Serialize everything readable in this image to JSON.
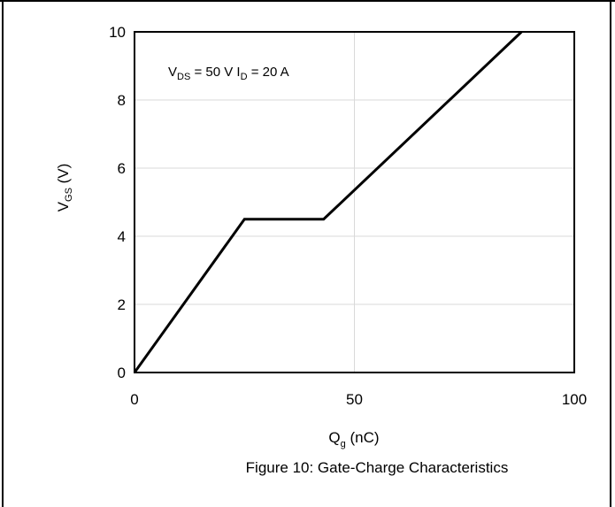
{
  "chart_data": {
    "type": "line",
    "x": [
      0,
      25,
      43,
      88
    ],
    "series": [
      {
        "values": [
          0,
          4.5,
          4.5,
          10
        ]
      }
    ],
    "xlim": [
      0,
      100
    ],
    "ylim": [
      0,
      10
    ],
    "xticks": [
      "0",
      "50",
      "100"
    ],
    "yticks": [
      "0",
      "2",
      "4",
      "6",
      "8",
      "10"
    ],
    "xticks_values": [
      0,
      50,
      100
    ],
    "yticks_values": [
      0,
      2,
      4,
      6,
      8,
      10
    ],
    "grid": true,
    "line_color": "#000000",
    "grid_color": "#d9d9d9",
    "xlabel": {
      "main": "Q",
      "sub": "g",
      "unit": " (nC)"
    },
    "ylabel": {
      "main": "V",
      "sub": "GS",
      "unit": " (V)"
    },
    "annotation": {
      "v": "V",
      "v_sub": "DS",
      "v_rest": " = 50 V ",
      "i": "I",
      "i_sub": "D",
      "i_rest": " = 20 A"
    },
    "caption": "Figure 10: Gate-Charge Characteristics"
  }
}
